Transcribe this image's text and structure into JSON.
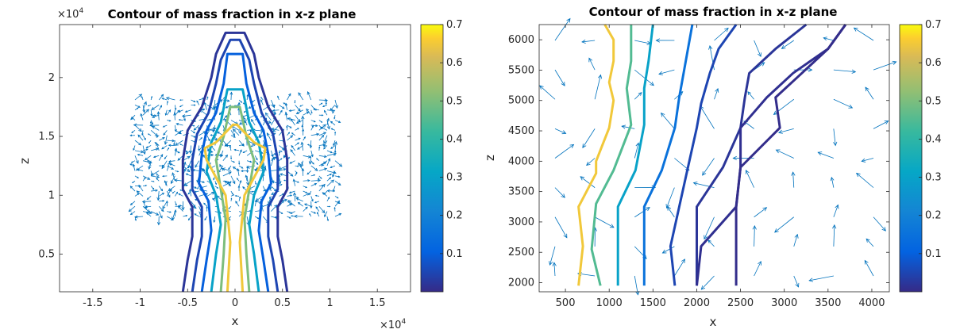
{
  "chart_data": [
    {
      "type": "contour",
      "title": "Contour of mass fraction in x-z plane",
      "xlabel": "x",
      "ylabel": "z",
      "x_exponent": "×10",
      "x_exponent_power": "4",
      "y_exponent": "×10",
      "y_exponent_power": "4",
      "xlim": [
        -1.85,
        1.85
      ],
      "ylim": [
        0.18,
        2.45
      ],
      "xticks": [
        -1.5,
        -1,
        -0.5,
        0,
        0.5,
        1,
        1.5
      ],
      "xtick_labels": [
        "-1.5",
        "-1",
        "-0.5",
        "0",
        "0.5",
        "1",
        "1.5"
      ],
      "yticks": [
        0.5,
        1,
        1.5,
        2
      ],
      "ytick_labels": [
        "0.5",
        "1",
        "1.5",
        "2"
      ],
      "colorbar": {
        "ticks": [
          0.1,
          0.2,
          0.3,
          0.4,
          0.5,
          0.6,
          0.7
        ],
        "tick_labels": [
          "0.1",
          "0.2",
          "0.3",
          "0.4",
          "0.5",
          "0.6",
          "0.7"
        ],
        "range": [
          0,
          0.7
        ]
      },
      "colormap": "parula",
      "quiver_color": "#0072bd",
      "contours": [
        {
          "level": 0.02,
          "x": [
            -0.55,
            -0.5,
            -0.45,
            -0.45,
            -0.55,
            -0.55,
            -0.5,
            -0.35,
            -0.25,
            -0.2,
            -0.1,
            0.1,
            0.2,
            0.25,
            0.35,
            0.5,
            0.55,
            0.55,
            0.45,
            0.45,
            0.5,
            0.55
          ],
          "y": [
            0.18,
            0.45,
            0.65,
            0.9,
            1.05,
            1.3,
            1.55,
            1.75,
            2.0,
            2.2,
            2.38,
            2.38,
            2.2,
            2.0,
            1.75,
            1.55,
            1.3,
            1.05,
            0.9,
            0.65,
            0.45,
            0.18
          ]
        },
        {
          "level": 0.05,
          "x": [
            -0.45,
            -0.4,
            -0.35,
            -0.35,
            -0.45,
            -0.45,
            -0.4,
            -0.28,
            -0.2,
            -0.15,
            -0.05,
            0.05,
            0.15,
            0.2,
            0.28,
            0.4,
            0.45,
            0.45,
            0.35,
            0.35,
            0.4,
            0.45
          ],
          "y": [
            0.18,
            0.45,
            0.65,
            0.9,
            1.05,
            1.3,
            1.52,
            1.7,
            1.95,
            2.15,
            2.32,
            2.32,
            2.15,
            1.95,
            1.7,
            1.52,
            1.3,
            1.05,
            0.9,
            0.65,
            0.45,
            0.18
          ]
        },
        {
          "level": 0.1,
          "x": [
            -0.35,
            -0.3,
            -0.25,
            -0.28,
            -0.38,
            -0.35,
            -0.3,
            -0.2,
            -0.12,
            -0.08,
            0.08,
            0.12,
            0.2,
            0.3,
            0.35,
            0.38,
            0.28,
            0.25,
            0.3,
            0.35
          ],
          "y": [
            0.18,
            0.45,
            0.7,
            0.95,
            1.1,
            1.35,
            1.55,
            1.7,
            1.95,
            2.2,
            2.2,
            1.95,
            1.7,
            1.55,
            1.35,
            1.1,
            0.95,
            0.7,
            0.45,
            0.18
          ]
        },
        {
          "level": 0.3,
          "x": [
            -0.25,
            -0.2,
            -0.15,
            -0.2,
            -0.3,
            -0.25,
            -0.15,
            -0.08,
            0.08,
            0.15,
            0.25,
            0.3,
            0.2,
            0.15,
            0.2,
            0.25
          ],
          "y": [
            0.18,
            0.5,
            0.75,
            1.0,
            1.2,
            1.45,
            1.62,
            1.9,
            1.9,
            1.62,
            1.45,
            1.2,
            1.0,
            0.75,
            0.5,
            0.18
          ]
        },
        {
          "level": 0.5,
          "x": [
            -0.15,
            -0.12,
            -0.1,
            -0.15,
            -0.2,
            -0.12,
            -0.05,
            0.05,
            0.12,
            0.2,
            0.15,
            0.1,
            0.12,
            0.15
          ],
          "y": [
            0.18,
            0.5,
            0.8,
            1.05,
            1.3,
            1.5,
            1.75,
            1.75,
            1.5,
            1.3,
            1.05,
            0.8,
            0.5,
            0.18
          ]
        },
        {
          "level": 0.65,
          "x": [
            -0.08,
            -0.05,
            -0.1,
            -0.3,
            -0.32,
            -0.2,
            -0.02,
            0.02,
            0.2,
            0.32,
            0.3,
            0.1,
            0.05,
            0.08
          ],
          "y": [
            0.18,
            0.6,
            1.0,
            1.3,
            1.4,
            1.45,
            1.6,
            1.6,
            1.45,
            1.4,
            1.3,
            1.0,
            0.6,
            0.18
          ]
        }
      ]
    },
    {
      "type": "contour",
      "title": "Contour of mass fraction in x-z plane",
      "xlabel": "x",
      "ylabel": "z",
      "xlim": [
        200,
        4200
      ],
      "ylim": [
        1850,
        6250
      ],
      "xticks": [
        500,
        1000,
        1500,
        2000,
        2500,
        3000,
        3500,
        4000
      ],
      "xtick_labels": [
        "500",
        "1000",
        "1500",
        "2000",
        "2500",
        "3000",
        "3500",
        "4000"
      ],
      "yticks": [
        2000,
        2500,
        3000,
        3500,
        4000,
        4500,
        5000,
        5500,
        6000
      ],
      "ytick_labels": [
        "2000",
        "2500",
        "3000",
        "3500",
        "4000",
        "4500",
        "5000",
        "5500",
        "6000"
      ],
      "colorbar": {
        "ticks": [
          0.1,
          0.2,
          0.3,
          0.4,
          0.5,
          0.6,
          0.7
        ],
        "tick_labels": [
          "0.1",
          "0.2",
          "0.3",
          "0.4",
          "0.5",
          "0.6",
          "0.7"
        ],
        "range": [
          0,
          0.7
        ]
      },
      "colormap": "parula",
      "quiver_color": "#0072bd",
      "contours": [
        {
          "level": 0.65,
          "x": [
            650,
            700,
            650,
            850,
            850,
            1000,
            1050,
            1000,
            1050,
            1050,
            950
          ],
          "y": [
            1950,
            2600,
            3250,
            3800,
            4000,
            4550,
            5000,
            5300,
            5650,
            6000,
            6250
          ]
        },
        {
          "level": 0.45,
          "x": [
            900,
            800,
            850,
            1050,
            1250,
            1200,
            1250,
            1250
          ],
          "y": [
            1950,
            2550,
            3300,
            3850,
            4600,
            5200,
            5650,
            6250
          ]
        },
        {
          "level": 0.3,
          "x": [
            1100,
            1100,
            1100,
            1300,
            1400,
            1400,
            1450,
            1500
          ],
          "y": [
            1950,
            2600,
            3250,
            3850,
            4600,
            5200,
            5650,
            6250
          ]
        },
        {
          "level": 0.15,
          "x": [
            1400,
            1400,
            1400,
            1600,
            1750,
            1800,
            1850,
            1900,
            1950
          ],
          "y": [
            1950,
            2600,
            3250,
            3850,
            4550,
            5050,
            5450,
            5850,
            6250
          ]
        },
        {
          "level": 0.05,
          "x": [
            1750,
            1700,
            1800,
            1900,
            2000,
            2050,
            2150,
            2250,
            2450
          ],
          "y": [
            1950,
            2600,
            3250,
            3900,
            4550,
            4950,
            5450,
            5850,
            6250
          ]
        },
        {
          "level": 0.02,
          "x": [
            2000,
            2000,
            2000,
            2300,
            2500,
            2550,
            2600,
            2900,
            3250
          ],
          "y": [
            1950,
            2600,
            3250,
            3900,
            4550,
            5050,
            5450,
            5850,
            6250
          ]
        },
        {
          "level": 0.01,
          "x": [
            2000,
            2050,
            2450,
            2500,
            2500,
            2800,
            3100,
            3500,
            3700
          ],
          "y": [
            1950,
            2600,
            3250,
            3900,
            4550,
            5050,
            5450,
            5850,
            6250
          ]
        },
        {
          "level": 0.005,
          "x": [
            2450,
            2450,
            2450,
            2500,
            2950,
            2900,
            3200,
            3500,
            3700
          ],
          "y": [
            1950,
            2600,
            3250,
            3900,
            4550,
            5050,
            5450,
            5850,
            6250
          ]
        }
      ]
    }
  ]
}
